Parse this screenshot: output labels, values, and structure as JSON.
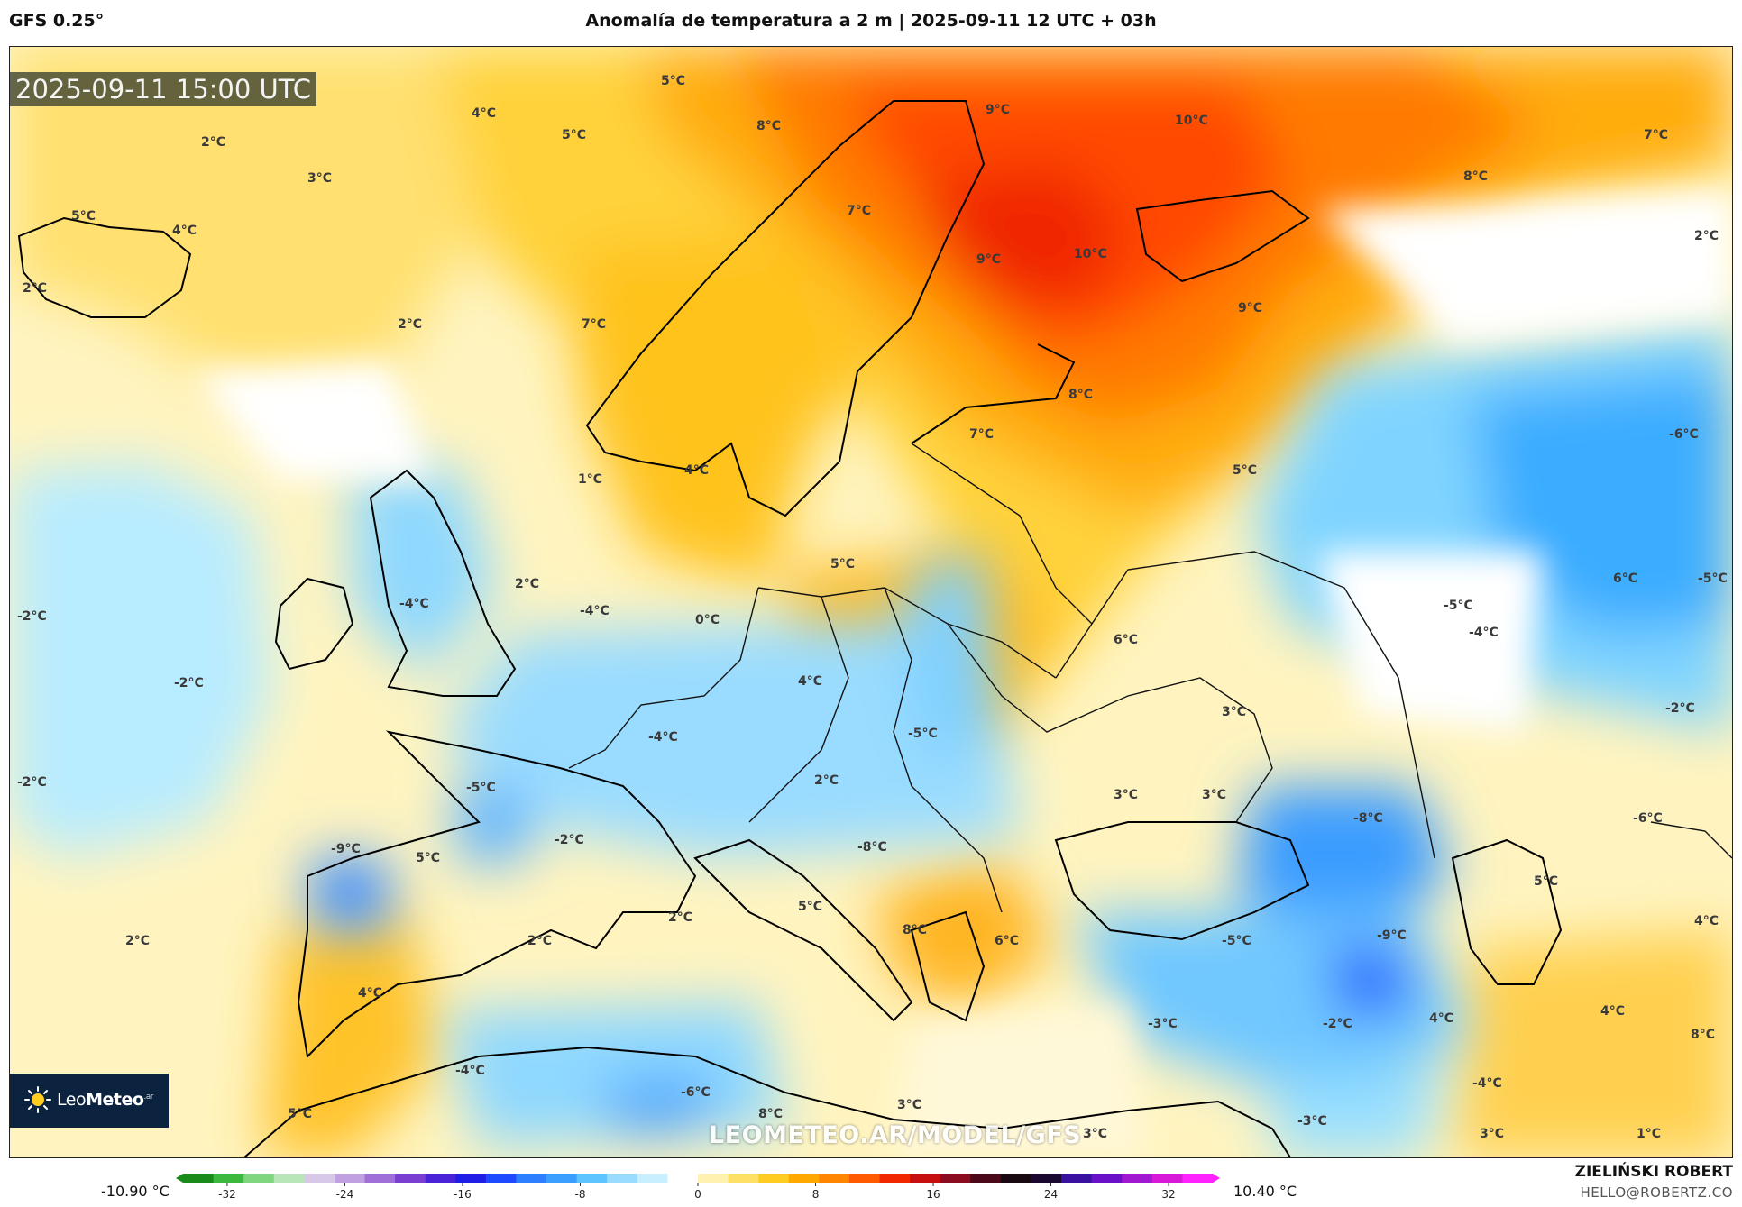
{
  "header": {
    "model": "GFS 0.25°",
    "title": "Anomalía de temperatura a 2 m | 2025-09-11 12 UTC + 03h"
  },
  "map": {
    "valid_time": "2025-09-11 15:00 UTC",
    "watermark": "LEOMETEO.AR/MODEL/GFS",
    "labels": [
      {
        "id": "l1",
        "text": "5°C"
      },
      {
        "id": "l2",
        "text": "4°C"
      },
      {
        "id": "l3",
        "text": "5°C"
      },
      {
        "id": "l4",
        "text": "2°C"
      },
      {
        "id": "l5",
        "text": "3°C"
      },
      {
        "id": "l6",
        "text": "5°C"
      },
      {
        "id": "l7",
        "text": "4°C"
      },
      {
        "id": "l8",
        "text": "2°C"
      },
      {
        "id": "l9",
        "text": "2°C"
      },
      {
        "id": "l10",
        "text": "8°C"
      },
      {
        "id": "l11",
        "text": "9°C"
      },
      {
        "id": "l12",
        "text": "10°C"
      },
      {
        "id": "l13",
        "text": "7°C"
      },
      {
        "id": "l14",
        "text": "8°C"
      },
      {
        "id": "l15",
        "text": "7°C"
      },
      {
        "id": "l16",
        "text": "9°C"
      },
      {
        "id": "l17",
        "text": "10°C"
      },
      {
        "id": "l18",
        "text": "9°C"
      },
      {
        "id": "l19",
        "text": "2°C"
      },
      {
        "id": "l20",
        "text": "7°C"
      },
      {
        "id": "l21",
        "text": "8°C"
      },
      {
        "id": "l22",
        "text": "7°C"
      },
      {
        "id": "l23",
        "text": "5°C"
      },
      {
        "id": "l24",
        "text": "-6°C"
      },
      {
        "id": "l25",
        "text": "6°C"
      },
      {
        "id": "l26",
        "text": "1°C"
      },
      {
        "id": "l27",
        "text": "4°C"
      },
      {
        "id": "l28",
        "text": "2°C"
      },
      {
        "id": "l29",
        "text": "-4°C"
      },
      {
        "id": "l30",
        "text": "-4°C"
      },
      {
        "id": "l31",
        "text": "0°C"
      },
      {
        "id": "l32",
        "text": "5°C"
      },
      {
        "id": "l33",
        "text": "-2°C"
      },
      {
        "id": "l34",
        "text": "-2°C"
      },
      {
        "id": "l35",
        "text": "6°C"
      },
      {
        "id": "l36",
        "text": "-5°C"
      },
      {
        "id": "l37",
        "text": "-5°C"
      },
      {
        "id": "l38",
        "text": "-4°C"
      },
      {
        "id": "l39",
        "text": "4°C"
      },
      {
        "id": "l40",
        "text": "3°C"
      },
      {
        "id": "l41",
        "text": "-2°C"
      },
      {
        "id": "l42",
        "text": "-4°C"
      },
      {
        "id": "l43",
        "text": "-5°C"
      },
      {
        "id": "l44",
        "text": "-2°C"
      },
      {
        "id": "l45",
        "text": "-5°C"
      },
      {
        "id": "l46",
        "text": "2°C"
      },
      {
        "id": "l47",
        "text": "3°C"
      },
      {
        "id": "l48",
        "text": "3°C"
      },
      {
        "id": "l49",
        "text": "-8°C"
      },
      {
        "id": "l50",
        "text": "-6°C"
      },
      {
        "id": "l51",
        "text": "-9°C"
      },
      {
        "id": "l52",
        "text": "5°C"
      },
      {
        "id": "l53",
        "text": "-2°C"
      },
      {
        "id": "l54",
        "text": "-8°C"
      },
      {
        "id": "l55",
        "text": "5°C"
      },
      {
        "id": "l56",
        "text": "4°C"
      },
      {
        "id": "l57",
        "text": "2°C"
      },
      {
        "id": "l58",
        "text": "2°C"
      },
      {
        "id": "l59",
        "text": "5°C"
      },
      {
        "id": "l60",
        "text": "2°C"
      },
      {
        "id": "l61",
        "text": "8°C"
      },
      {
        "id": "l62",
        "text": "6°C"
      },
      {
        "id": "l63",
        "text": "-9°C"
      },
      {
        "id": "l64",
        "text": "-5°C"
      },
      {
        "id": "l65",
        "text": "4°C"
      },
      {
        "id": "l66",
        "text": "4°C"
      },
      {
        "id": "l67",
        "text": "-3°C"
      },
      {
        "id": "l68",
        "text": "-2°C"
      },
      {
        "id": "l69",
        "text": "4°C"
      },
      {
        "id": "l70",
        "text": "8°C"
      },
      {
        "id": "l71",
        "text": "-4°C"
      },
      {
        "id": "l72",
        "text": "-6°C"
      },
      {
        "id": "l73",
        "text": "8°C"
      },
      {
        "id": "l74",
        "text": "3°C"
      },
      {
        "id": "l75",
        "text": "3°C"
      },
      {
        "id": "l76",
        "text": "-3°C"
      },
      {
        "id": "l77",
        "text": "-4°C"
      },
      {
        "id": "l78",
        "text": "3°C"
      },
      {
        "id": "l79",
        "text": "1°C"
      },
      {
        "id": "l80",
        "text": "5°C"
      }
    ]
  },
  "logo": {
    "brand_light": "Leo",
    "brand_bold": "Meteo",
    "suffix": ".ar"
  },
  "colorbar": {
    "min_label": "-10.90 °C",
    "max_label": "10.40 °C",
    "ticks": [
      "-32",
      "-24",
      "-16",
      "-8",
      "0",
      "8",
      "16",
      "24",
      "32"
    ],
    "tick_values": [
      -32,
      -24,
      -16,
      -8,
      0,
      8,
      16,
      24,
      32
    ],
    "range": [
      -35,
      35
    ],
    "colors": [
      "#1a8a1a",
      "#3cb83c",
      "#7fd67f",
      "#b8e6b8",
      "#d8c8e8",
      "#c0a0e0",
      "#a070d8",
      "#7a3fd0",
      "#4a22d8",
      "#1e1ee6",
      "#1e4aff",
      "#2e7fff",
      "#3aa0ff",
      "#5ec4ff",
      "#9adcff",
      "#c8efff",
      "#ffffff",
      "#fff2b0",
      "#ffe066",
      "#ffcc22",
      "#ffa800",
      "#ff8400",
      "#ff5a00",
      "#f02800",
      "#c80f0f",
      "#8a0c1e",
      "#4a0818",
      "#180810",
      "#1a0830",
      "#3a10a0",
      "#6a10c8",
      "#a018d0",
      "#d81ad8",
      "#ff22ff"
    ]
  },
  "credits": {
    "author": "ZIELIŃSKI ROBERT",
    "email": "HELLO@ROBERTZ.CO"
  }
}
